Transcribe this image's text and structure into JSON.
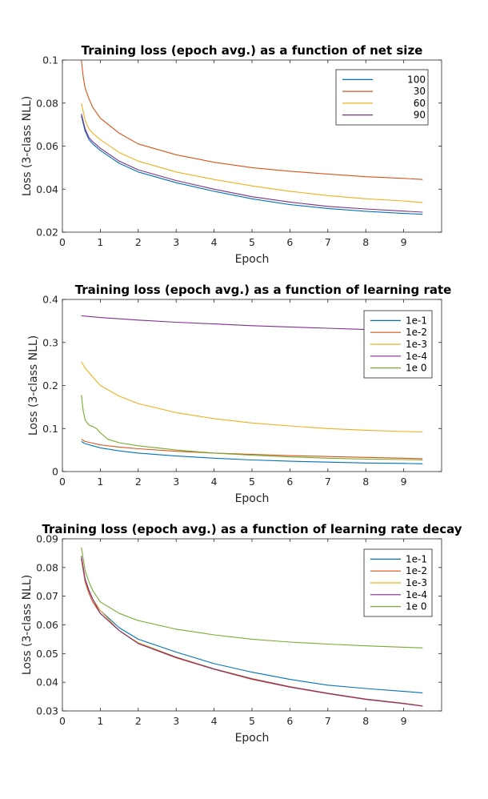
{
  "chart_data": [
    {
      "type": "line",
      "title": "Training loss (epoch avg.) as a function of net size",
      "xlabel": "Epoch",
      "ylabel": "Loss (3-class NLL)",
      "xlim": [
        0,
        10
      ],
      "ylim": [
        0.02,
        0.1
      ],
      "xticks": [
        0,
        1,
        2,
        3,
        4,
        5,
        6,
        7,
        8,
        9
      ],
      "yticks": [
        0.02,
        0.04,
        0.06,
        0.08,
        0.1
      ],
      "legend_position": "top-right",
      "grid": false,
      "series": [
        {
          "name": "100",
          "color": "#0072bd",
          "x": [
            0.5,
            0.6,
            0.7,
            0.8,
            1,
            1.5,
            2,
            3,
            4,
            5,
            6,
            7,
            8,
            9,
            9.5
          ],
          "y": [
            0.074,
            0.067,
            0.063,
            0.061,
            0.058,
            0.052,
            0.048,
            0.043,
            0.039,
            0.0355,
            0.0328,
            0.031,
            0.0297,
            0.0287,
            0.0283
          ]
        },
        {
          "name": "30",
          "color": "#d95319",
          "x": [
            0.5,
            0.55,
            0.6,
            0.7,
            0.8,
            1,
            1.5,
            2,
            3,
            4,
            5,
            6,
            7,
            8,
            9,
            9.5
          ],
          "y": [
            0.1,
            0.092,
            0.087,
            0.082,
            0.078,
            0.073,
            0.066,
            0.061,
            0.056,
            0.0525,
            0.05,
            0.0483,
            0.047,
            0.0458,
            0.045,
            0.0445
          ]
        },
        {
          "name": "60",
          "color": "#edb120",
          "x": [
            0.5,
            0.6,
            0.7,
            0.8,
            1,
            1.5,
            2,
            3,
            4,
            5,
            6,
            7,
            8,
            9,
            9.5
          ],
          "y": [
            0.08,
            0.072,
            0.068,
            0.066,
            0.063,
            0.057,
            0.053,
            0.048,
            0.0445,
            0.0415,
            0.039,
            0.037,
            0.0355,
            0.0345,
            0.0338
          ]
        },
        {
          "name": "90",
          "color": "#7e2f8e",
          "x": [
            0.5,
            0.6,
            0.7,
            0.8,
            1,
            1.5,
            2,
            3,
            4,
            5,
            6,
            7,
            8,
            9,
            9.5
          ],
          "y": [
            0.075,
            0.068,
            0.064,
            0.062,
            0.059,
            0.053,
            0.049,
            0.044,
            0.04,
            0.0365,
            0.034,
            0.032,
            0.0308,
            0.0298,
            0.0293
          ]
        }
      ]
    },
    {
      "type": "line",
      "title": "Training loss (epoch avg.) as a function of learning rate",
      "xlabel": "Epoch",
      "ylabel": "Loss (3-class NLL)",
      "xlim": [
        0,
        10
      ],
      "ylim": [
        0,
        0.4
      ],
      "xticks": [
        0,
        1,
        2,
        3,
        4,
        5,
        6,
        7,
        8,
        9
      ],
      "yticks": [
        0,
        0.1,
        0.2,
        0.3,
        0.4
      ],
      "legend_position": "top-right",
      "grid": false,
      "series": [
        {
          "name": "1e-1",
          "color": "#0072bd",
          "x": [
            0.5,
            0.6,
            0.8,
            1,
            1.5,
            2,
            3,
            4,
            5,
            6,
            7,
            8,
            9,
            9.5
          ],
          "y": [
            0.07,
            0.065,
            0.06,
            0.055,
            0.048,
            0.043,
            0.036,
            0.031,
            0.027,
            0.024,
            0.022,
            0.02,
            0.019,
            0.018
          ]
        },
        {
          "name": "1e-2",
          "color": "#d95319",
          "x": [
            0.5,
            0.6,
            0.8,
            1,
            1.5,
            2,
            3,
            4,
            5,
            6,
            7,
            8,
            9,
            9.5
          ],
          "y": [
            0.075,
            0.07,
            0.066,
            0.062,
            0.057,
            0.053,
            0.047,
            0.043,
            0.04,
            0.037,
            0.035,
            0.033,
            0.031,
            0.03
          ]
        },
        {
          "name": "1e-3",
          "color": "#edb120",
          "x": [
            0.5,
            0.6,
            0.8,
            1,
            1.5,
            2,
            3,
            4,
            5,
            6,
            7,
            8,
            9,
            9.5
          ],
          "y": [
            0.255,
            0.24,
            0.22,
            0.2,
            0.175,
            0.158,
            0.137,
            0.123,
            0.113,
            0.106,
            0.1,
            0.096,
            0.093,
            0.092
          ]
        },
        {
          "name": "1e-4",
          "color": "#7e2f8e",
          "x": [
            0.5,
            1,
            2,
            3,
            4,
            5,
            6,
            7,
            8,
            9,
            9.5
          ],
          "y": [
            0.362,
            0.358,
            0.352,
            0.347,
            0.343,
            0.339,
            0.336,
            0.333,
            0.33,
            0.327,
            0.326
          ]
        },
        {
          "name": "1e 0",
          "color": "#77ac30",
          "x": [
            0.5,
            0.55,
            0.6,
            0.7,
            0.8,
            0.9,
            1,
            1.2,
            1.5,
            2,
            3,
            4,
            5,
            6,
            7,
            8,
            9,
            9.5
          ],
          "y": [
            0.178,
            0.14,
            0.12,
            0.108,
            0.105,
            0.1,
            0.09,
            0.075,
            0.067,
            0.06,
            0.05,
            0.043,
            0.038,
            0.034,
            0.031,
            0.029,
            0.028,
            0.027
          ]
        }
      ]
    },
    {
      "type": "line",
      "title": "Training loss (epoch avg.) as a function of learning rate decay",
      "xlabel": "Epoch",
      "ylabel": "Loss (3-class NLL)",
      "xlim": [
        0,
        10
      ],
      "ylim": [
        0.03,
        0.09
      ],
      "xticks": [
        0,
        1,
        2,
        3,
        4,
        5,
        6,
        7,
        8,
        9
      ],
      "yticks": [
        0.03,
        0.04,
        0.05,
        0.06,
        0.07,
        0.08,
        0.09
      ],
      "legend_position": "top-right",
      "grid": false,
      "series": [
        {
          "name": "1e-1",
          "color": "#0072bd",
          "x": [
            0.5,
            0.6,
            0.7,
            0.8,
            1,
            1.5,
            2,
            3,
            4,
            5,
            6,
            7,
            8,
            9,
            9.5
          ],
          "y": [
            0.083,
            0.076,
            0.072,
            0.069,
            0.065,
            0.059,
            0.055,
            0.0505,
            0.0465,
            0.0435,
            0.041,
            0.039,
            0.0378,
            0.0368,
            0.0363
          ]
        },
        {
          "name": "1e-2",
          "color": "#d95319",
          "x": [
            0.5,
            0.6,
            0.7,
            0.8,
            1,
            1.5,
            2,
            3,
            4,
            5,
            6,
            7,
            8,
            9,
            9.5
          ],
          "y": [
            0.083,
            0.075,
            0.071,
            0.068,
            0.064,
            0.058,
            0.0535,
            0.0485,
            0.0445,
            0.041,
            0.0383,
            0.036,
            0.034,
            0.0325,
            0.0317
          ]
        },
        {
          "name": "1e-3",
          "color": "#edb120",
          "x": [
            0.5,
            0.6,
            0.7,
            0.8,
            1,
            1.5,
            2,
            3,
            4,
            5,
            6,
            7,
            8,
            9,
            9.5
          ],
          "y": [
            0.084,
            0.076,
            0.072,
            0.069,
            0.065,
            0.058,
            0.0538,
            0.0488,
            0.0447,
            0.0413,
            0.0385,
            0.0362,
            0.0342,
            0.0327,
            0.0318
          ]
        },
        {
          "name": "1e-4",
          "color": "#7e2f8e",
          "x": [
            0.5,
            0.6,
            0.7,
            0.8,
            1,
            1.5,
            2,
            3,
            4,
            5,
            6,
            7,
            8,
            9,
            9.5
          ],
          "y": [
            0.084,
            0.076,
            0.072,
            0.069,
            0.064,
            0.058,
            0.0535,
            0.0487,
            0.0446,
            0.0412,
            0.0384,
            0.0361,
            0.0341,
            0.0326,
            0.0317
          ]
        },
        {
          "name": "1e 0",
          "color": "#77ac30",
          "x": [
            0.5,
            0.6,
            0.7,
            0.8,
            1,
            1.5,
            2,
            3,
            4,
            5,
            6,
            7,
            8,
            9,
            9.5
          ],
          "y": [
            0.087,
            0.079,
            0.075,
            0.072,
            0.068,
            0.064,
            0.0615,
            0.0585,
            0.0565,
            0.055,
            0.054,
            0.0533,
            0.0527,
            0.0522,
            0.052
          ]
        }
      ]
    }
  ]
}
